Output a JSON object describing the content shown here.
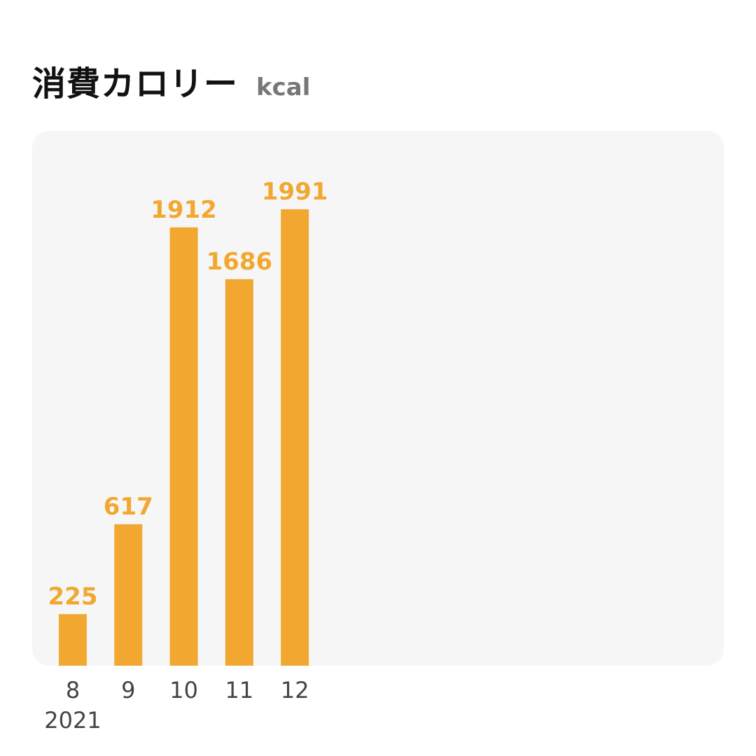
{
  "header": {
    "title": "消費カロリー",
    "unit": "kcal"
  },
  "colors": {
    "bar": "#f2a830",
    "panel": "#f6f6f6",
    "tick_text": "#444444"
  },
  "chart_data": {
    "type": "bar",
    "title": "消費カロリー",
    "unit": "kcal",
    "categories": [
      "8",
      "9",
      "10",
      "11",
      "12"
    ],
    "year_label": "2021",
    "values": [
      225,
      617,
      1912,
      1686,
      1991
    ],
    "ylim": [
      0,
      2000
    ],
    "grid": false,
    "legend": "none"
  }
}
